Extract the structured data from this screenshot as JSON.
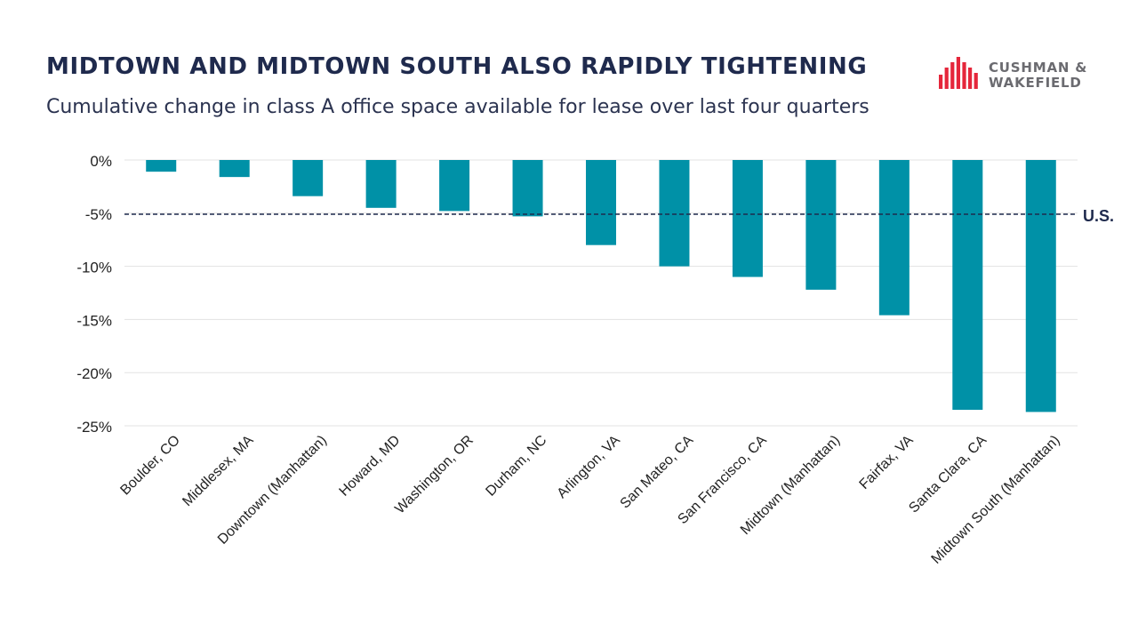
{
  "header": {
    "title": "MIDTOWN AND MIDTOWN SOUTH ALSO RAPIDLY TIGHTENING",
    "subtitle": "Cumulative change in class A office space available for lease over last four quarters"
  },
  "logo": {
    "line1": "CUSHMAN &",
    "line2": "WAKEFIELD",
    "mark_color": "#e5263b"
  },
  "chart_data": {
    "type": "bar",
    "categories": [
      "Boulder, CO",
      "Middlesex, MA",
      "Downtown (Manhattan)",
      "Howard, MD",
      "Washington, OR",
      "Durham, NC",
      "Arlington, VA",
      "San Mateo, CA",
      "San Francisco, CA",
      "Midtown (Manhattan)",
      "Fairfax, VA",
      "Santa Clara, CA",
      "Midtown South (Manhattan)"
    ],
    "values": [
      -1.1,
      -1.6,
      -3.4,
      -4.5,
      -4.8,
      -5.3,
      -8.0,
      -10.0,
      -11.0,
      -12.2,
      -14.6,
      -23.5,
      -23.7
    ],
    "yticks": [
      0,
      -5,
      -10,
      -15,
      -20,
      -25
    ],
    "ytick_labels": [
      "0%",
      "-5%",
      "-10%",
      "-15%",
      "-20%",
      "-25%"
    ],
    "ylim": [
      -25,
      0
    ],
    "reference_line": {
      "value": -5.1,
      "label": "U.S."
    },
    "bar_color": "#0091a7",
    "reference_color": "#1f2a4d",
    "grid": true
  }
}
